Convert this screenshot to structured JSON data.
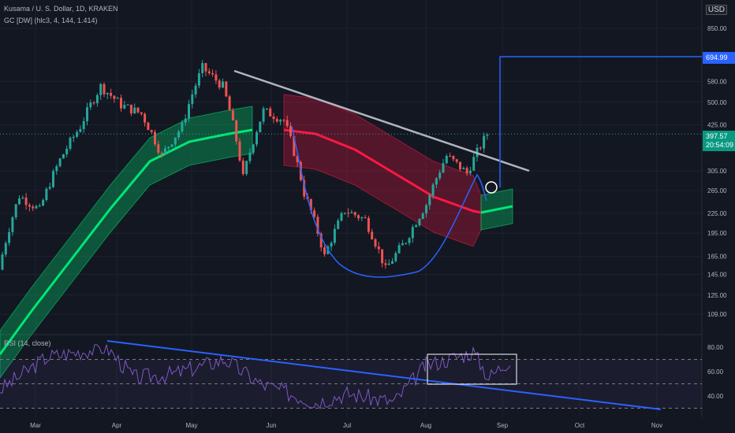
{
  "header": {
    "title": "Kusama / U. S. Dollar, 1D, KRAKEN",
    "indicator": "GC [DW] (hlc3, 4, 144, 1.414)",
    "currency": "USD"
  },
  "rsi_label": "RSI (14, close)",
  "tags": {
    "target_price": "694.99",
    "last_price": "397.57",
    "countdown": "20:54:09"
  },
  "colors": {
    "background": "#131722",
    "up": "#26a69a",
    "down": "#ef5350",
    "bull_band": "#00e676",
    "bear_band": "#ff1744",
    "curve": "#2962ff",
    "trendline": "#b2b5be",
    "rsi_line": "#7e57c2"
  },
  "chart_data": [
    {
      "type": "candlestick",
      "title": "Kusama / U. S. Dollar, 1D, KRAKEN",
      "x_ticks": [
        "Mar",
        "Apr",
        "May",
        "Jun",
        "Jul",
        "Aug",
        "Sep",
        "Oct",
        "Nov"
      ],
      "y_ticks": [
        109,
        125,
        145,
        165,
        195,
        225,
        265,
        305,
        425,
        500,
        580,
        694.99,
        850
      ],
      "y_scale": "log",
      "price_path_approx": [
        [
          "Mar",
          150
        ],
        [
          "Mar",
          255
        ],
        [
          "Mar",
          230
        ],
        [
          "Mar",
          330
        ],
        [
          "Mar",
          420
        ],
        [
          "Apr",
          560
        ],
        [
          "Apr",
          490
        ],
        [
          "Apr",
          460
        ],
        [
          "May",
          340
        ],
        [
          "May",
          420
        ],
        [
          "May",
          640
        ],
        [
          "May",
          560
        ],
        [
          "Jun",
          290
        ],
        [
          "Jun",
          470
        ],
        [
          "Jun",
          440
        ],
        [
          "Jun",
          260
        ],
        [
          "Jul",
          165
        ],
        [
          "Jul",
          230
        ],
        [
          "Jul",
          215
        ],
        [
          "Aug",
          150
        ],
        [
          "Aug",
          185
        ],
        [
          "Aug",
          240
        ],
        [
          "Aug",
          340
        ],
        [
          "Sep",
          300
        ],
        [
          "Sep",
          398
        ]
      ],
      "last_price": 397.57,
      "target_level": 694.99,
      "annotations": [
        "descending trendline from May high",
        "rounded bottom curve",
        "breakout circle near Sep"
      ]
    },
    {
      "type": "line",
      "title": "RSI (14, close)",
      "y_ticks": [
        40.0,
        60.0,
        80.0
      ],
      "levels": [
        30,
        50,
        70
      ],
      "annotations": [
        "descending trendline from Apr high",
        "highlight box Aug–Sep"
      ]
    }
  ]
}
